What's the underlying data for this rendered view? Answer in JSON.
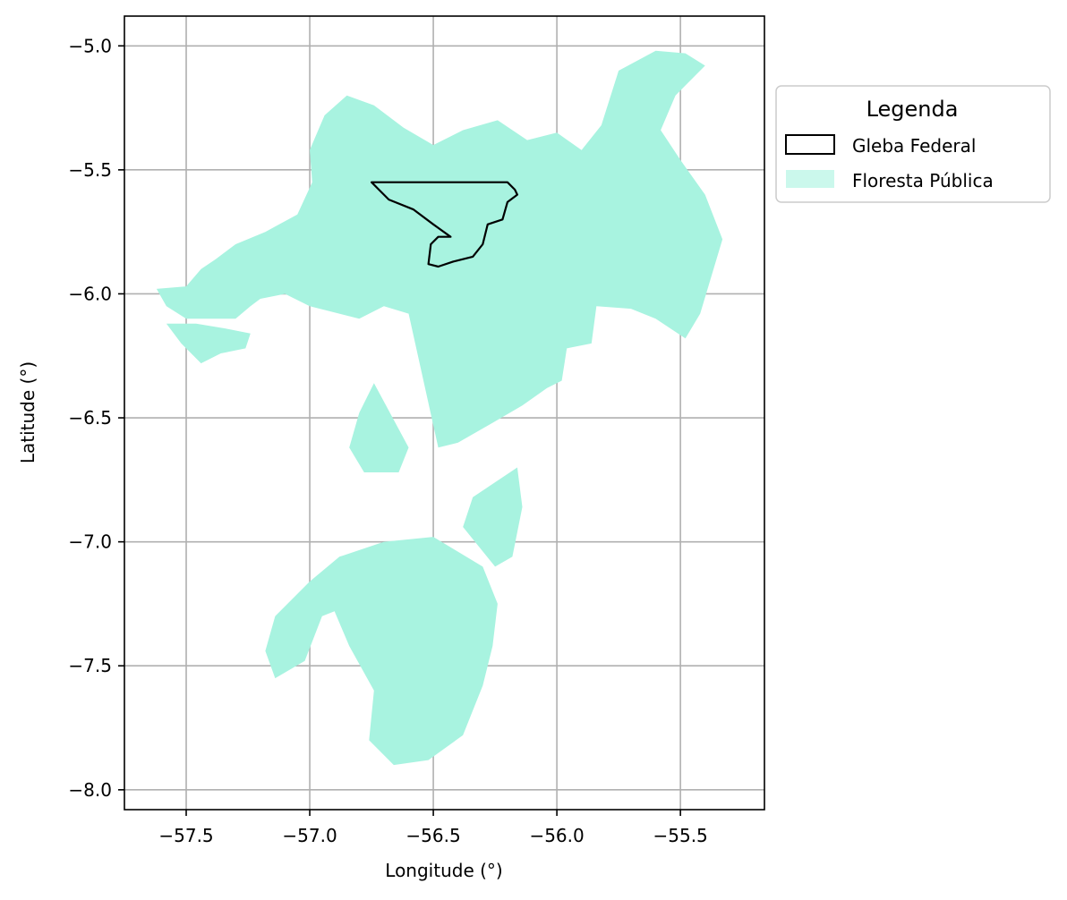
{
  "chart_data": {
    "type": "map",
    "xlabel": "Longitude (°)",
    "ylabel": "Latitude (°)",
    "xlim": [
      -57.75,
      -55.16
    ],
    "ylim": [
      -8.08,
      -4.88
    ],
    "xticks": [
      -57.5,
      -57.0,
      -56.5,
      -56.0,
      -55.5
    ],
    "xtick_labels": [
      "−57.5",
      "−57.0",
      "−56.5",
      "−56.0",
      "−55.5"
    ],
    "yticks": [
      -5.0,
      -5.5,
      -6.0,
      -6.5,
      -7.0,
      -7.5,
      -8.0
    ],
    "ytick_labels": [
      "−5.0",
      "−5.5",
      "−6.0",
      "−6.5",
      "−7.0",
      "−7.5",
      "−8.0"
    ],
    "grid": true,
    "legend": {
      "title": "Legenda",
      "placement": "outside-right-top",
      "entries": [
        {
          "label": "Gleba Federal",
          "style": "outline"
        },
        {
          "label": "Floresta Pública",
          "style": "fill"
        }
      ]
    },
    "colors": {
      "floresta_fill": "#a8f3e0",
      "gleba_edge": "#000000",
      "grid": "#b0b0b0"
    },
    "layers": [
      {
        "name": "Floresta Pública",
        "polygons": [
          [
            [
              -57.5,
              -5.97
            ],
            [
              -57.44,
              -5.9
            ],
            [
              -57.38,
              -5.86
            ],
            [
              -57.3,
              -5.8
            ],
            [
              -57.18,
              -5.75
            ],
            [
              -57.05,
              -5.68
            ],
            [
              -56.99,
              -5.55
            ],
            [
              -57.0,
              -5.42
            ],
            [
              -56.94,
              -5.28
            ],
            [
              -56.85,
              -5.2
            ],
            [
              -56.74,
              -5.24
            ],
            [
              -56.62,
              -5.33
            ],
            [
              -56.5,
              -5.4
            ],
            [
              -56.38,
              -5.34
            ],
            [
              -56.24,
              -5.3
            ],
            [
              -56.12,
              -5.38
            ],
            [
              -56.0,
              -5.35
            ],
            [
              -55.9,
              -5.42
            ],
            [
              -55.82,
              -5.32
            ],
            [
              -55.75,
              -5.1
            ],
            [
              -55.6,
              -5.02
            ],
            [
              -55.48,
              -5.03
            ],
            [
              -55.4,
              -5.08
            ],
            [
              -55.52,
              -5.2
            ],
            [
              -55.58,
              -5.34
            ],
            [
              -55.5,
              -5.46
            ],
            [
              -55.4,
              -5.6
            ],
            [
              -55.33,
              -5.78
            ],
            [
              -55.42,
              -6.08
            ],
            [
              -55.48,
              -6.18
            ],
            [
              -55.6,
              -6.1
            ],
            [
              -55.7,
              -6.06
            ],
            [
              -55.84,
              -6.05
            ],
            [
              -55.86,
              -6.2
            ],
            [
              -55.96,
              -6.22
            ],
            [
              -55.98,
              -6.35
            ],
            [
              -56.04,
              -6.38
            ],
            [
              -56.14,
              -6.45
            ],
            [
              -56.26,
              -6.52
            ],
            [
              -56.4,
              -6.6
            ],
            [
              -56.48,
              -6.62
            ],
            [
              -56.6,
              -6.08
            ],
            [
              -56.7,
              -6.05
            ],
            [
              -56.8,
              -6.1
            ],
            [
              -57.0,
              -6.05
            ],
            [
              -57.1,
              -6.0
            ],
            [
              -57.2,
              -6.02
            ],
            [
              -57.24,
              -6.05
            ],
            [
              -57.3,
              -6.1
            ],
            [
              -57.4,
              -6.1
            ],
            [
              -57.5,
              -6.1
            ],
            [
              -57.58,
              -6.05
            ],
            [
              -57.62,
              -5.98
            ]
          ],
          [
            [
              -57.58,
              -6.12
            ],
            [
              -57.46,
              -6.12
            ],
            [
              -57.34,
              -6.14
            ],
            [
              -57.24,
              -6.16
            ],
            [
              -57.26,
              -6.22
            ],
            [
              -57.36,
              -6.24
            ],
            [
              -57.44,
              -6.28
            ],
            [
              -57.52,
              -6.2
            ]
          ],
          [
            [
              -56.74,
              -6.36
            ],
            [
              -56.6,
              -6.62
            ],
            [
              -56.64,
              -6.72
            ],
            [
              -56.78,
              -6.72
            ],
            [
              -56.84,
              -6.62
            ],
            [
              -56.8,
              -6.48
            ]
          ],
          [
            [
              -56.5,
              -6.98
            ],
            [
              -56.7,
              -7.0
            ],
            [
              -56.88,
              -7.06
            ],
            [
              -57.0,
              -7.16
            ],
            [
              -57.14,
              -7.3
            ],
            [
              -57.18,
              -7.44
            ],
            [
              -57.14,
              -7.55
            ],
            [
              -57.02,
              -7.48
            ],
            [
              -56.95,
              -7.3
            ],
            [
              -56.9,
              -7.28
            ],
            [
              -56.84,
              -7.42
            ],
            [
              -56.74,
              -7.6
            ],
            [
              -56.76,
              -7.8
            ],
            [
              -56.66,
              -7.9
            ],
            [
              -56.52,
              -7.88
            ],
            [
              -56.38,
              -7.78
            ],
            [
              -56.3,
              -7.58
            ],
            [
              -56.26,
              -7.42
            ],
            [
              -56.24,
              -7.25
            ],
            [
              -56.3,
              -7.1
            ]
          ],
          [
            [
              -56.16,
              -6.7
            ],
            [
              -56.34,
              -6.82
            ],
            [
              -56.38,
              -6.94
            ],
            [
              -56.25,
              -7.1
            ],
            [
              -56.18,
              -7.06
            ],
            [
              -56.14,
              -6.86
            ]
          ]
        ]
      },
      {
        "name": "Gleba Federal",
        "polygons": [
          [
            [
              -56.75,
              -5.55
            ],
            [
              -56.2,
              -5.55
            ],
            [
              -56.17,
              -5.58
            ],
            [
              -56.16,
              -5.6
            ],
            [
              -56.2,
              -5.63
            ],
            [
              -56.22,
              -5.7
            ],
            [
              -56.28,
              -5.72
            ],
            [
              -56.3,
              -5.8
            ],
            [
              -56.34,
              -5.85
            ],
            [
              -56.42,
              -5.87
            ],
            [
              -56.48,
              -5.89
            ],
            [
              -56.52,
              -5.88
            ],
            [
              -56.51,
              -5.8
            ],
            [
              -56.48,
              -5.77
            ],
            [
              -56.43,
              -5.77
            ],
            [
              -56.5,
              -5.72
            ],
            [
              -56.58,
              -5.66
            ],
            [
              -56.68,
              -5.62
            ],
            [
              -56.72,
              -5.58
            ]
          ]
        ]
      }
    ]
  }
}
